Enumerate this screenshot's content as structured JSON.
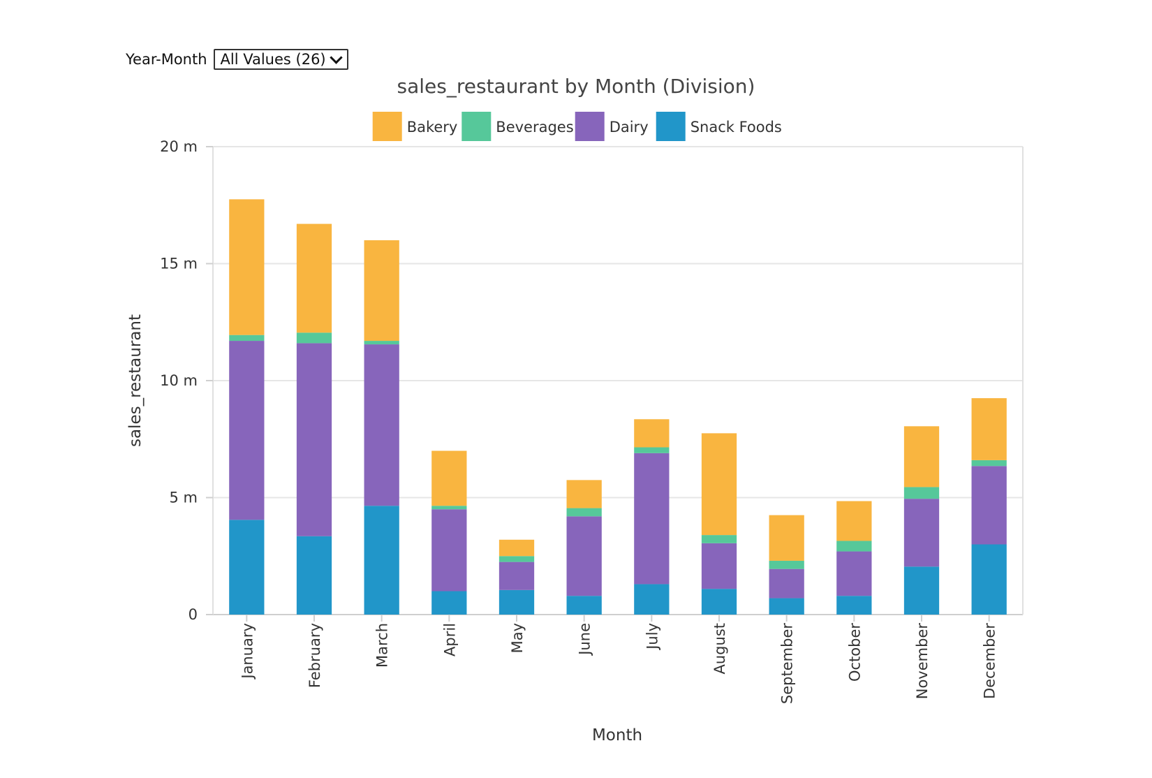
{
  "filter": {
    "label": "Year-Month",
    "selected": "All Values (26)"
  },
  "chart_data": {
    "type": "bar",
    "stacked": true,
    "title": "sales_restaurant by Month (Division)",
    "xlabel": "Month",
    "ylabel": "sales_restaurant",
    "ylim": [
      0,
      20000000
    ],
    "yticks": [
      {
        "value": 0,
        "label": "0"
      },
      {
        "value": 5000000,
        "label": "5 m"
      },
      {
        "value": 10000000,
        "label": "10 m"
      },
      {
        "value": 15000000,
        "label": "15 m"
      },
      {
        "value": 20000000,
        "label": "20 m"
      }
    ],
    "grid": true,
    "legend_position": "top",
    "categories": [
      "January",
      "February",
      "March",
      "April",
      "May",
      "June",
      "July",
      "August",
      "September",
      "October",
      "November",
      "December"
    ],
    "series": [
      {
        "name": "Snack Foods",
        "color": "#2196c9",
        "values": [
          4050000,
          3350000,
          4650000,
          1000000,
          1050000,
          800000,
          1300000,
          1100000,
          700000,
          800000,
          2050000,
          3000000
        ]
      },
      {
        "name": "Dairy",
        "color": "#8765bb",
        "values": [
          7650000,
          8250000,
          6900000,
          3500000,
          1200000,
          3400000,
          5600000,
          1950000,
          1250000,
          1900000,
          2900000,
          3350000
        ]
      },
      {
        "name": "Beverages",
        "color": "#56c89a",
        "values": [
          250000,
          450000,
          150000,
          150000,
          250000,
          350000,
          250000,
          350000,
          350000,
          450000,
          500000,
          250000
        ]
      },
      {
        "name": "Bakery",
        "color": "#f9b540",
        "values": [
          5800000,
          4650000,
          4300000,
          2350000,
          700000,
          1200000,
          1200000,
          4350000,
          1950000,
          1700000,
          2600000,
          2650000
        ]
      }
    ],
    "legend_order": [
      "Bakery",
      "Beverages",
      "Dairy",
      "Snack Foods"
    ]
  }
}
